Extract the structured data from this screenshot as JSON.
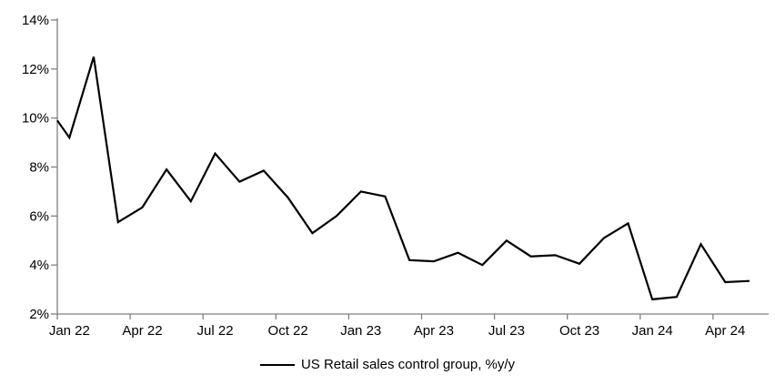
{
  "chart_data": {
    "type": "line",
    "title": "",
    "legend": [
      "US Retail sales control group, %y/y"
    ],
    "legend_position": "bottom-center",
    "x": [
      "Jan 22",
      "Feb 22",
      "Mar 22",
      "Apr 22",
      "May 22",
      "Jun 22",
      "Jul 22",
      "Aug 22",
      "Sep 22",
      "Oct 22",
      "Nov 22",
      "Dec 22",
      "Jan 23",
      "Feb 23",
      "Mar 23",
      "Apr 23",
      "May 23",
      "Jun 23",
      "Jul 23",
      "Aug 23",
      "Sep 23",
      "Oct 23",
      "Nov 23",
      "Dec 23",
      "Jan 24",
      "Feb 24",
      "Mar 24",
      "Apr 24",
      "May 24"
    ],
    "values": [
      9.2,
      12.5,
      5.75,
      6.35,
      7.9,
      6.6,
      8.55,
      7.4,
      7.85,
      6.75,
      5.3,
      6.0,
      7.0,
      6.8,
      4.2,
      4.15,
      4.5,
      4.0,
      5.0,
      4.35,
      4.4,
      4.05,
      5.1,
      5.7,
      2.6,
      2.7,
      4.85,
      3.3,
      3.35
    ],
    "axis_entry_value": 9.9,
    "x_tick_labels": [
      "Jan 22",
      "Apr 22",
      "Jul 22",
      "Oct 22",
      "Jan 23",
      "Apr 23",
      "Jul 23",
      "Oct 23",
      "Jan 24",
      "Apr 24"
    ],
    "x_tick_interval_months": 3,
    "y_tick_labels": [
      "2%",
      "4%",
      "6%",
      "8%",
      "10%",
      "12%",
      "14%"
    ],
    "y_tick_values": [
      2,
      4,
      6,
      8,
      10,
      12,
      14
    ],
    "ylim": [
      2,
      14
    ],
    "grid": false,
    "line_color": "#000000",
    "axis_color": "#808080",
    "text_color": "#000000"
  }
}
